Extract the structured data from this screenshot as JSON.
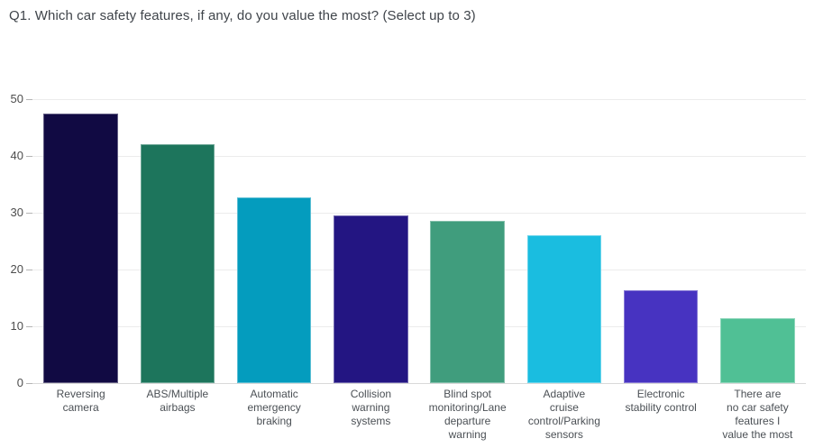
{
  "title": "Q1. Which car safety features, if any, do you value the most? (Select up to 3)",
  "colors": {
    "background": "#ffffff",
    "title_text": "#3f444a",
    "axis_label_text": "#4d4d4d",
    "category_label_text": "#4b5055",
    "gridline": "#ececec",
    "baseline": "#d9d9d9"
  },
  "chart_data": {
    "type": "bar",
    "title": "Q1. Which car safety features, if any, do you value the most? (Select up to 3)",
    "categories": [
      "Reversing camera",
      "ABS/Multiple airbags",
      "Automatic emergency braking",
      "Collision warning systems",
      "Blind spot monitoring/Lane departure warning",
      "Adaptive cruise control/Parking sensors",
      "Electronic stability control",
      "There are no car safety features I value the most"
    ],
    "category_lines": [
      "Reversing\ncamera",
      "ABS/Multiple\nairbags",
      "Automatic\nemergency\nbraking",
      "Collision\nwarning\nsystems",
      "Blind spot\nmonitoring/Lane\ndeparture\nwarning",
      "Adaptive\ncruise\ncontrol/Parking\nsensors",
      "Electronic\nstability control",
      "There are\nno car safety\nfeatures I\nvalue the most"
    ],
    "values": [
      47.5,
      42.1,
      32.7,
      29.5,
      28.6,
      26.1,
      16.3,
      11.5
    ],
    "bar_colors": [
      "#110a43",
      "#1d755c",
      "#049cbe",
      "#231582",
      "#409d7d",
      "#1abde0",
      "#4733c1",
      "#50c095"
    ],
    "xlabel": "",
    "ylabel": "",
    "ylim": [
      0,
      50
    ],
    "yticks": [
      0,
      10,
      20,
      30,
      40,
      50
    ],
    "grid": true,
    "legend": false
  }
}
